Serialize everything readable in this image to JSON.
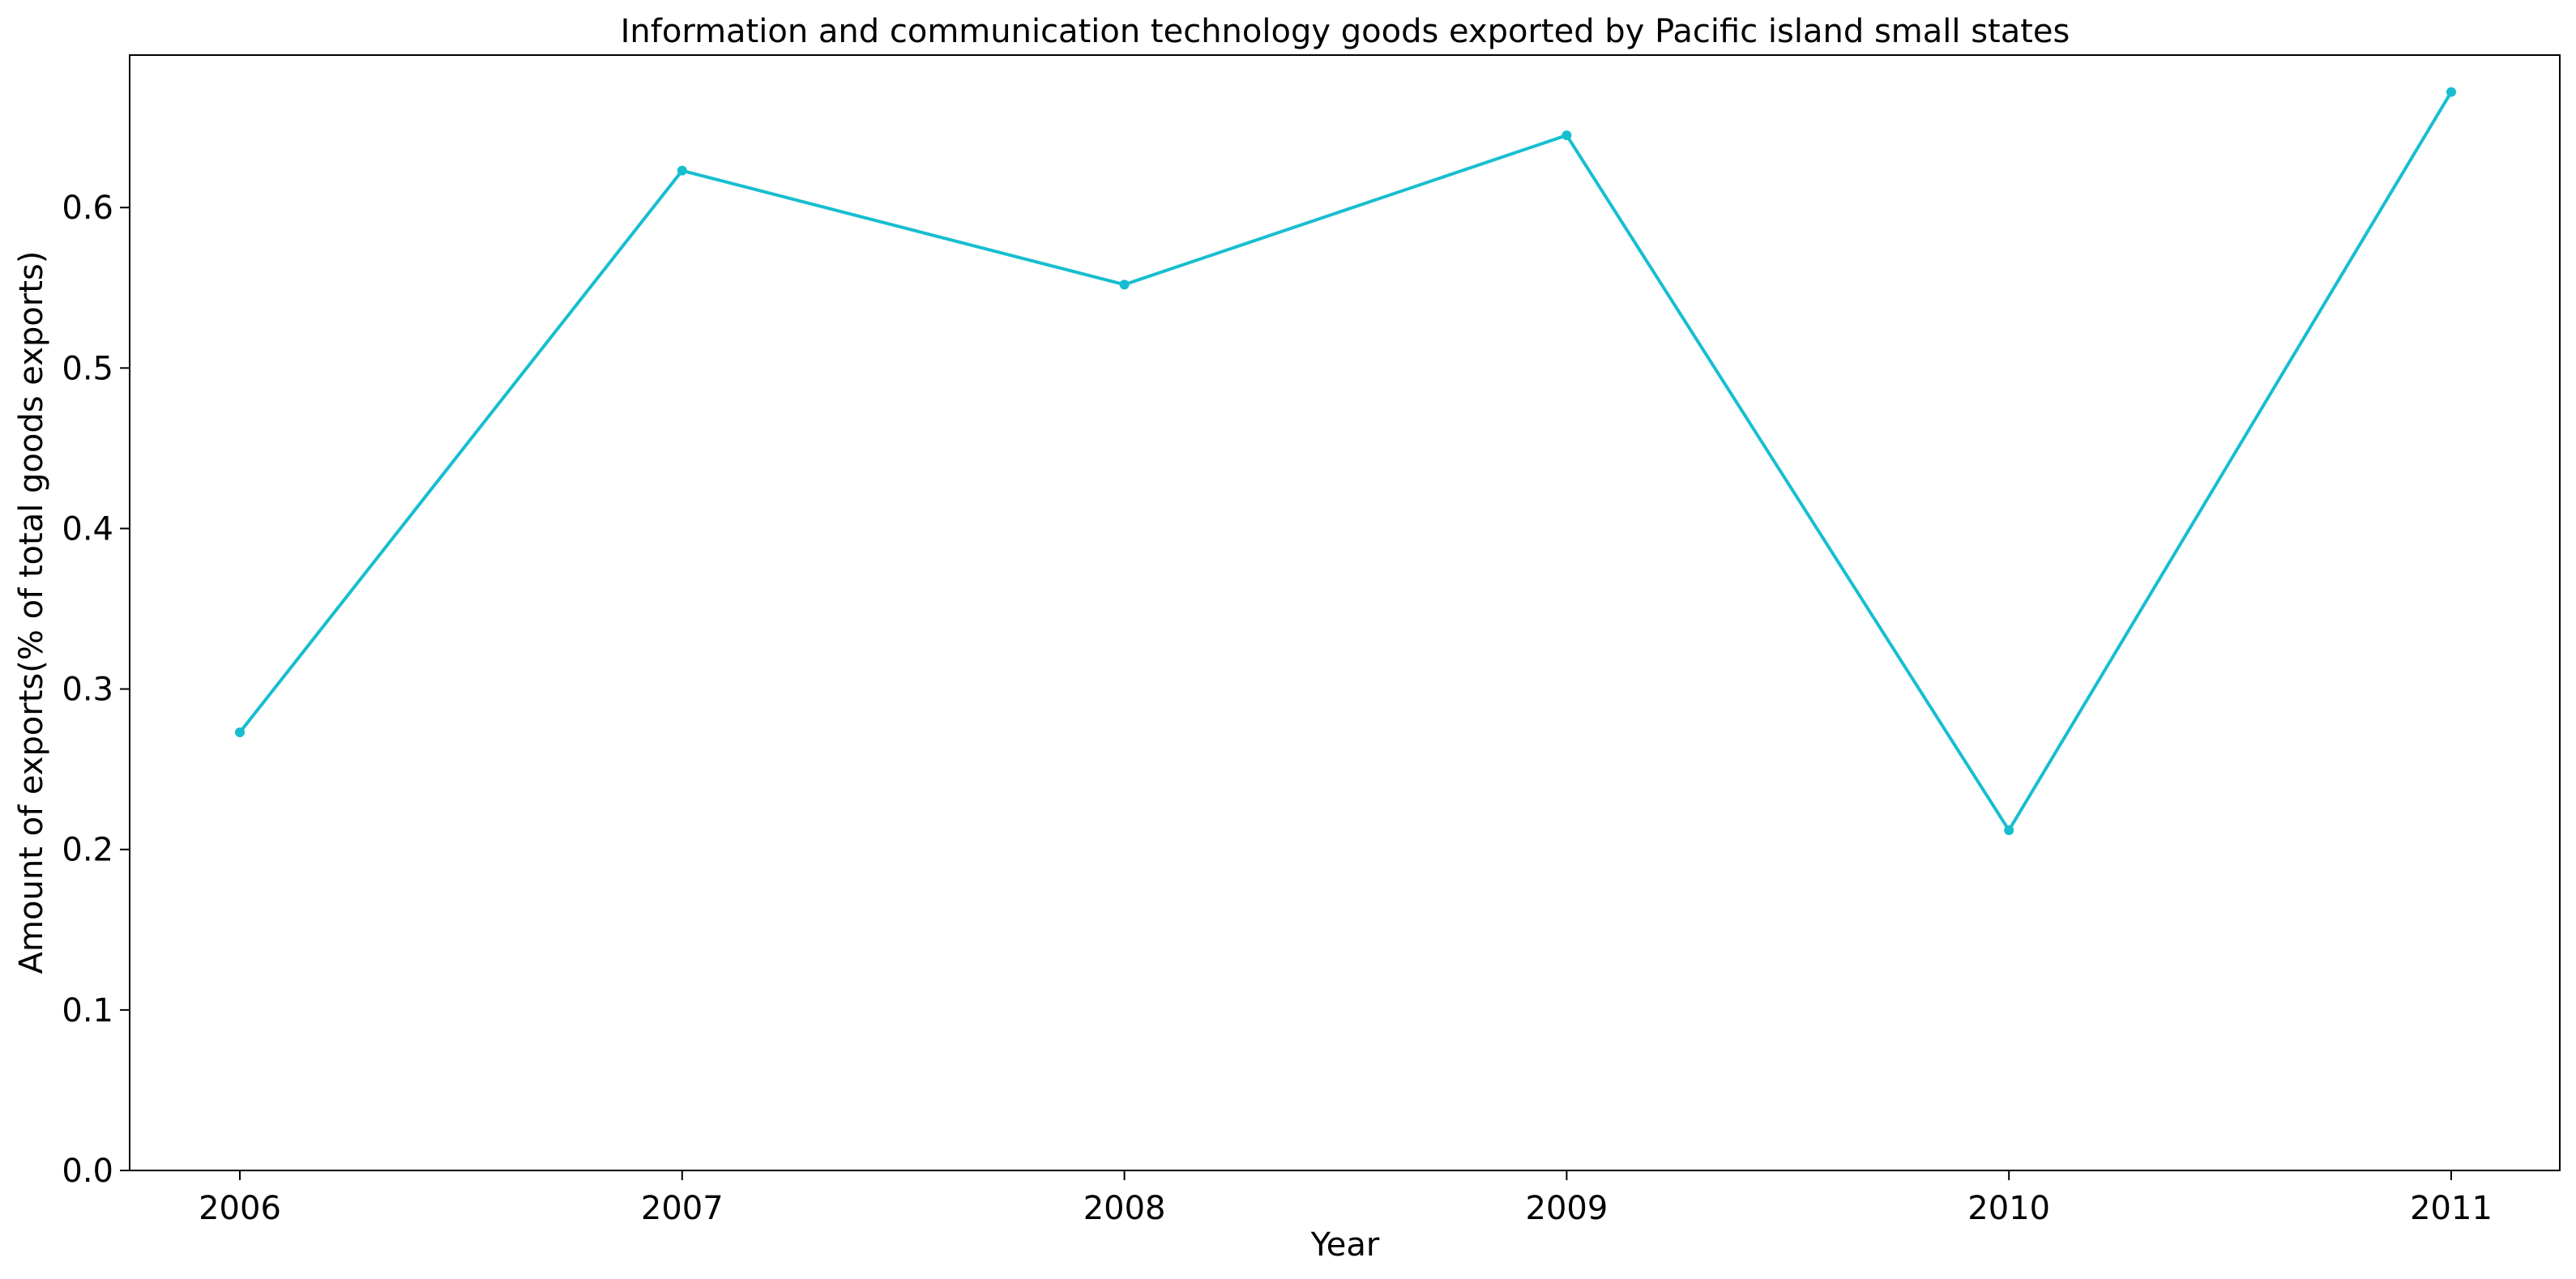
{
  "chart_data": {
    "type": "line",
    "title": "Information and communication technology goods exported by Pacific island small states",
    "xlabel": "Year",
    "ylabel": "Amount of exports(% of total goods exports)",
    "x": [
      "2006",
      "2007",
      "2008",
      "2009",
      "2010",
      "2011"
    ],
    "series": [
      {
        "values": [
          0.273,
          0.623,
          0.552,
          0.645,
          0.212,
          0.672
        ],
        "color": "#17becf",
        "marker": "circle"
      }
    ],
    "ylim": [
      0.0,
      0.695
    ],
    "yticks": [
      "0.0",
      "0.1",
      "0.2",
      "0.3",
      "0.4",
      "0.5",
      "0.6"
    ],
    "grid": false,
    "legend": "none"
  }
}
